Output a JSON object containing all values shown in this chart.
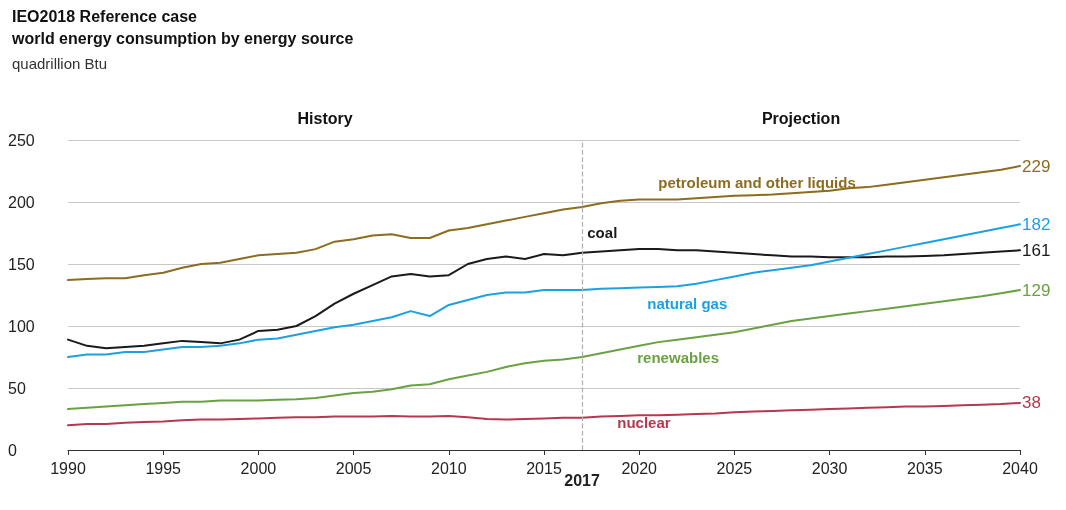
{
  "chart_data": {
    "type": "line",
    "title": "IEO2018 Reference case",
    "subtitle": "world energy consumption by energy source",
    "ylabel": "quadrillion Btu",
    "x": [
      1990,
      1991,
      1992,
      1993,
      1994,
      1995,
      1996,
      1997,
      1998,
      1999,
      2000,
      2001,
      2002,
      2003,
      2004,
      2005,
      2006,
      2007,
      2008,
      2009,
      2010,
      2011,
      2012,
      2013,
      2014,
      2015,
      2016,
      2017,
      2018,
      2019,
      2020,
      2021,
      2022,
      2023,
      2024,
      2025,
      2026,
      2027,
      2028,
      2029,
      2030,
      2031,
      2032,
      2033,
      2034,
      2035,
      2036,
      2037,
      2038,
      2039,
      2040
    ],
    "series": [
      {
        "name": "petroleum and other liquids",
        "color": "#8c6d1f",
        "values": [
          137,
          138,
          138.5,
          138.5,
          141,
          143,
          147,
          150,
          151,
          154,
          157,
          158,
          159,
          162,
          168,
          170,
          173,
          174,
          171,
          171,
          177,
          179,
          182,
          185,
          188,
          191,
          194,
          196,
          199,
          201,
          202,
          202,
          202,
          203,
          204,
          205,
          205.5,
          206,
          207,
          208,
          209,
          211,
          212,
          214,
          216,
          218,
          220,
          222,
          224,
          226,
          229
        ],
        "value_labels": [
          null,
          null,
          null,
          null,
          null,
          null,
          null,
          null,
          null,
          null,
          null,
          null,
          null,
          null,
          null,
          null,
          null,
          null,
          null,
          null,
          null,
          null,
          null,
          null,
          null,
          null,
          null,
          null,
          null,
          null,
          null,
          null,
          null,
          null,
          null,
          null,
          null,
          null,
          null,
          null,
          null,
          null,
          null,
          null,
          null,
          null,
          null,
          null,
          null,
          null,
          "229"
        ]
      },
      {
        "name": "coal",
        "color": "#1a1a1a",
        "values": [
          89,
          84,
          82,
          83,
          84,
          86,
          88,
          87,
          86,
          89,
          96,
          97,
          100,
          108,
          118,
          126,
          133,
          140,
          142,
          140,
          141,
          150,
          154,
          156,
          154,
          158,
          157,
          159,
          160,
          161,
          162,
          162,
          161,
          161,
          160,
          159,
          158,
          157,
          156,
          156,
          155.5,
          155.5,
          155.5,
          156,
          156,
          156.5,
          157,
          158,
          159,
          160,
          161
        ],
        "value_labels": [
          null,
          null,
          null,
          null,
          null,
          null,
          null,
          null,
          null,
          null,
          null,
          null,
          null,
          null,
          null,
          null,
          null,
          null,
          null,
          null,
          null,
          null,
          null,
          null,
          null,
          null,
          null,
          null,
          null,
          null,
          null,
          null,
          null,
          null,
          null,
          null,
          null,
          null,
          null,
          null,
          null,
          null,
          null,
          null,
          null,
          null,
          null,
          null,
          null,
          null,
          "161"
        ]
      },
      {
        "name": "natural gas",
        "color": "#1ba1e2",
        "values": [
          75,
          77,
          77,
          79,
          79,
          81,
          83,
          83,
          84,
          86,
          89,
          90,
          93,
          96,
          99,
          101,
          104,
          107,
          112,
          108,
          117,
          121,
          125,
          127,
          127,
          129,
          129,
          129,
          130,
          130.5,
          131,
          131.5,
          132,
          134,
          137,
          140,
          143,
          145,
          147,
          149,
          152,
          155,
          158,
          161,
          164,
          167,
          170,
          173,
          176,
          179,
          182
        ],
        "value_labels": [
          null,
          null,
          null,
          null,
          null,
          null,
          null,
          null,
          null,
          null,
          null,
          null,
          null,
          null,
          null,
          null,
          null,
          null,
          null,
          null,
          null,
          null,
          null,
          null,
          null,
          null,
          null,
          null,
          null,
          null,
          null,
          null,
          null,
          null,
          null,
          null,
          null,
          null,
          null,
          null,
          null,
          null,
          null,
          null,
          null,
          null,
          null,
          null,
          null,
          null,
          "182"
        ]
      },
      {
        "name": "renewables",
        "color": "#6aa142",
        "values": [
          33,
          34,
          35,
          36,
          37,
          38,
          39,
          39,
          40,
          40,
          40,
          40.5,
          41,
          42,
          44,
          46,
          47,
          49,
          52,
          53,
          57,
          60,
          63,
          67,
          70,
          72,
          73,
          75,
          78,
          81,
          84,
          87,
          89,
          91,
          93,
          95,
          98,
          101,
          104,
          106,
          108,
          110,
          112,
          114,
          116,
          118,
          120,
          122,
          124,
          126.5,
          129
        ],
        "value_labels": [
          null,
          null,
          null,
          null,
          null,
          null,
          null,
          null,
          null,
          null,
          null,
          null,
          null,
          null,
          null,
          null,
          null,
          null,
          null,
          null,
          null,
          null,
          null,
          null,
          null,
          null,
          null,
          null,
          null,
          null,
          null,
          null,
          null,
          null,
          null,
          null,
          null,
          null,
          null,
          null,
          null,
          null,
          null,
          null,
          null,
          null,
          null,
          null,
          null,
          null,
          "129"
        ]
      },
      {
        "name": "nuclear",
        "color": "#b5384f",
        "values": [
          20,
          21,
          21,
          22,
          22.5,
          23,
          24,
          24.5,
          24.5,
          25,
          25.5,
          26,
          26.5,
          26.5,
          27,
          27,
          27,
          27.5,
          27,
          27,
          27.5,
          26.5,
          25,
          24.5,
          25,
          25.5,
          26,
          26,
          27,
          27.5,
          28,
          28,
          28.5,
          29,
          29.5,
          30.5,
          31,
          31.5,
          32,
          32.5,
          33,
          33.5,
          34,
          34.5,
          35,
          35,
          35.5,
          36,
          36.5,
          37,
          38
        ],
        "value_labels": [
          null,
          null,
          null,
          null,
          null,
          null,
          null,
          null,
          null,
          null,
          null,
          null,
          null,
          null,
          null,
          null,
          null,
          null,
          null,
          null,
          null,
          null,
          null,
          null,
          null,
          null,
          null,
          null,
          null,
          null,
          null,
          null,
          null,
          null,
          null,
          null,
          null,
          null,
          null,
          null,
          null,
          null,
          null,
          null,
          null,
          null,
          null,
          null,
          null,
          null,
          "38"
        ]
      }
    ],
    "xlim": [
      1990,
      2040
    ],
    "xticks": [
      1990,
      1995,
      2000,
      2005,
      2010,
      2015,
      2020,
      2025,
      2030,
      2035,
      2040
    ],
    "ylim": [
      0,
      250
    ],
    "yticks": [
      0,
      50,
      100,
      150,
      200,
      250
    ],
    "grid": "y",
    "legend": false,
    "marker": "none",
    "line_style": "solid",
    "ref_lines": [
      {
        "axis": "x",
        "value": 2017,
        "label": "2017",
        "color": "#b0b0b0",
        "line_style": "dashed"
      }
    ],
    "annotations": [
      "History",
      "Projection"
    ]
  }
}
